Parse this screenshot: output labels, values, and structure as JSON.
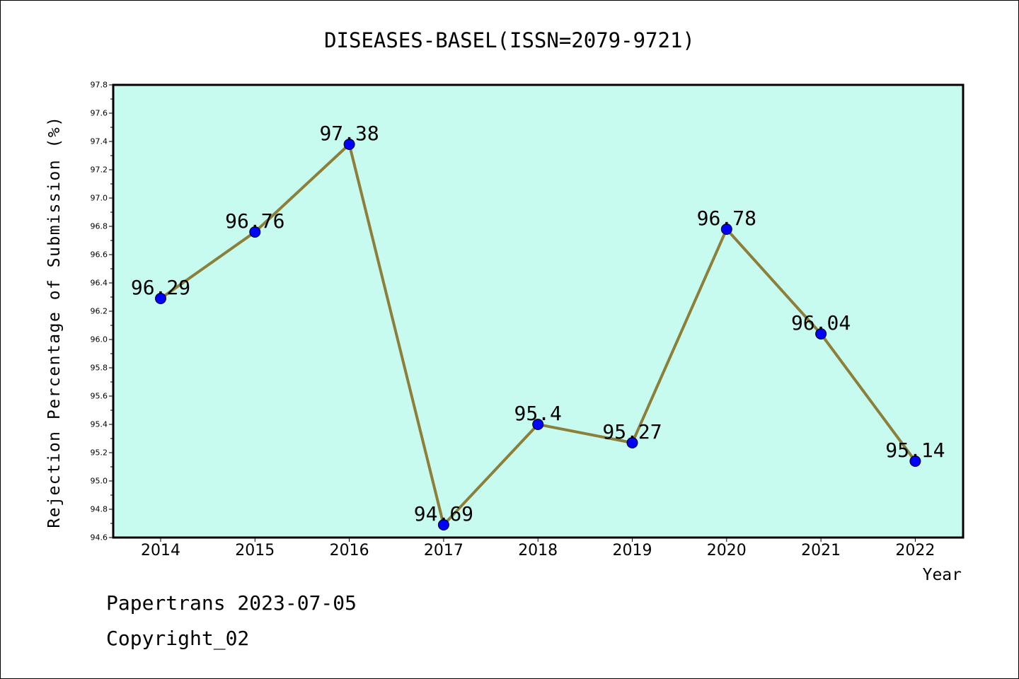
{
  "chart_data": {
    "type": "line",
    "title": "DISEASES-BASEL(ISSN=2079-9721)",
    "xlabel": "Year",
    "ylabel": "Rejection Percentage of Submission (%)",
    "categories": [
      "2014",
      "2015",
      "2016",
      "2017",
      "2018",
      "2019",
      "2020",
      "2021",
      "2022"
    ],
    "values": [
      96.29,
      96.76,
      97.38,
      94.69,
      95.4,
      95.27,
      96.78,
      96.04,
      95.14
    ],
    "data_labels": [
      "96.29",
      "96.76",
      "97.38",
      "94.69",
      "95.4",
      "95.27",
      "96.78",
      "96.04",
      "95.14"
    ],
    "ylim": [
      94.6,
      97.8
    ],
    "y_ticks": [
      "94.6",
      "94.8",
      "95.0",
      "95.2",
      "95.4",
      "95.6",
      "95.8",
      "96.0",
      "96.2",
      "96.4",
      "96.6",
      "96.8",
      "97.0",
      "97.2",
      "97.4",
      "97.6",
      "97.8"
    ],
    "grid": false,
    "legend": "none",
    "colors": {
      "plot_background": "#c8fbef",
      "line": "#8c7f3a",
      "marker": "#0000ff"
    }
  },
  "footer": {
    "line1": "Papertrans 2023-07-05",
    "line2": "Copyright_02"
  }
}
